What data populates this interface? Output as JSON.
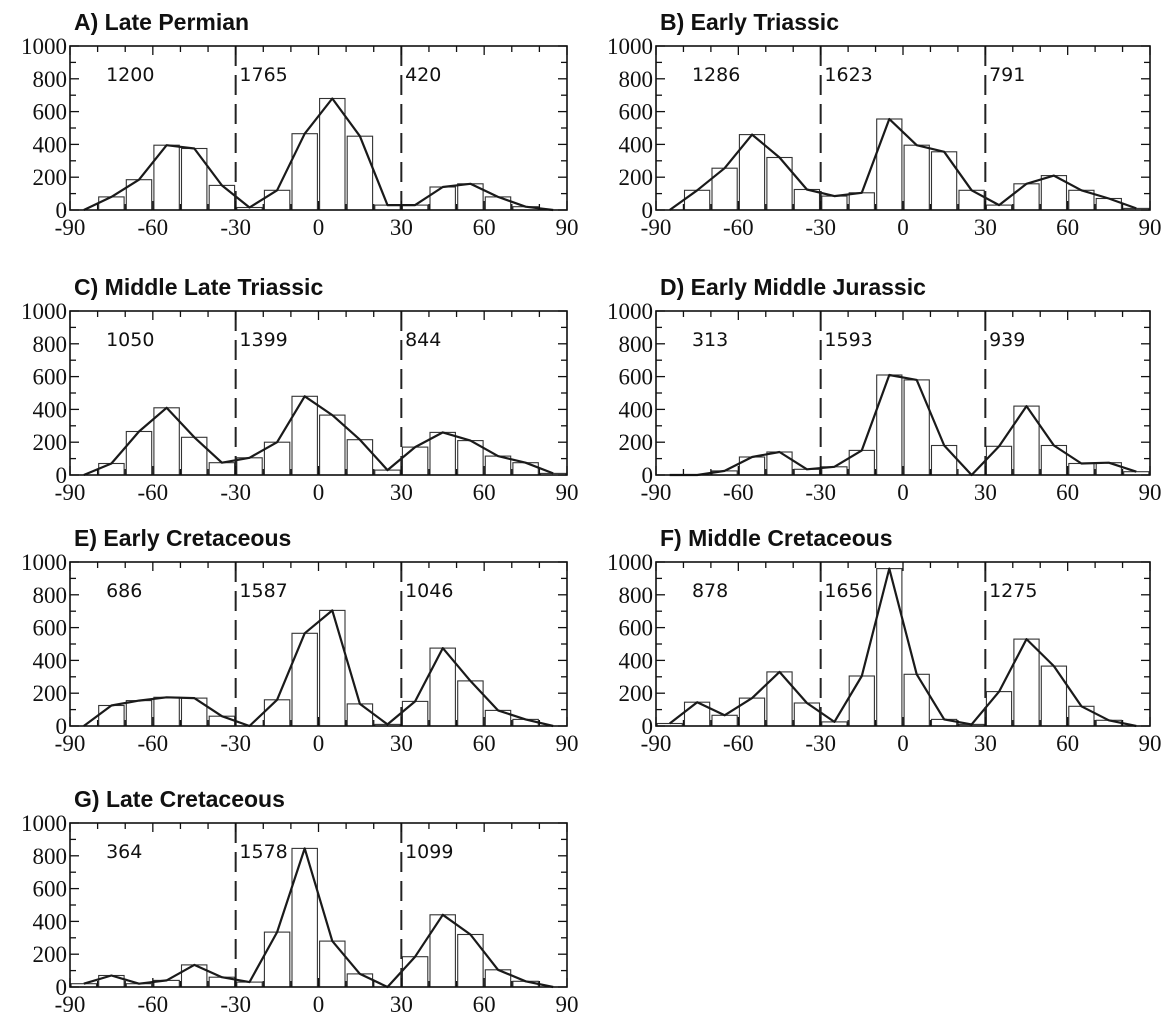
{
  "chart_data": [
    {
      "type": "bar",
      "title": "A) Late Permian",
      "xlim": [
        -90,
        90
      ],
      "ylim": [
        0,
        1000
      ],
      "xticks": [
        "-90",
        "-60",
        "-30",
        "0",
        "30",
        "60",
        "90"
      ],
      "yticks": [
        "0",
        "200",
        "400",
        "600",
        "800",
        "1000"
      ],
      "zone_boundaries": [
        -30,
        30
      ],
      "zone_counts": [
        "1200",
        "1765",
        "420"
      ],
      "bins": [
        -85,
        -75,
        -65,
        -55,
        -45,
        -35,
        -25,
        -15,
        -5,
        5,
        15,
        25,
        35,
        45,
        55,
        65,
        75,
        85
      ],
      "values": [
        0,
        80,
        185,
        395,
        375,
        150,
        15,
        120,
        465,
        680,
        450,
        30,
        30,
        140,
        160,
        80,
        20,
        0
      ],
      "line": [
        0,
        80,
        185,
        395,
        375,
        150,
        15,
        120,
        465,
        680,
        450,
        30,
        30,
        140,
        160,
        80,
        20,
        0
      ]
    },
    {
      "type": "bar",
      "title": "B) Early Triassic",
      "xlim": [
        -90,
        90
      ],
      "ylim": [
        0,
        1000
      ],
      "xticks": [
        "-90",
        "-60",
        "-30",
        "0",
        "30",
        "60",
        "90"
      ],
      "yticks": [
        "0",
        "200",
        "400",
        "600",
        "800",
        "1000"
      ],
      "zone_boundaries": [
        -30,
        30
      ],
      "zone_counts": [
        "1286",
        "1623",
        "791"
      ],
      "bins": [
        -85,
        -75,
        -65,
        -55,
        -45,
        -35,
        -25,
        -15,
        -5,
        5,
        15,
        25,
        35,
        45,
        55,
        65,
        75,
        85
      ],
      "values": [
        0,
        120,
        255,
        460,
        320,
        125,
        85,
        105,
        555,
        395,
        355,
        120,
        30,
        160,
        210,
        120,
        70,
        10
      ],
      "line": [
        0,
        120,
        255,
        460,
        320,
        125,
        85,
        105,
        555,
        395,
        355,
        120,
        30,
        160,
        210,
        120,
        70,
        10
      ]
    },
    {
      "type": "bar",
      "title": "C) Middle Late Triassic",
      "xlim": [
        -90,
        90
      ],
      "ylim": [
        0,
        1000
      ],
      "xticks": [
        "-90",
        "-60",
        "-30",
        "0",
        "30",
        "60",
        "90"
      ],
      "yticks": [
        "0",
        "200",
        "400",
        "600",
        "800",
        "1000"
      ],
      "zone_boundaries": [
        -30,
        30
      ],
      "zone_counts": [
        "1050",
        "1399",
        "844"
      ],
      "bins": [
        -85,
        -75,
        -65,
        -55,
        -45,
        -35,
        -25,
        -15,
        -5,
        5,
        15,
        25,
        35,
        45,
        55,
        65,
        75,
        85
      ],
      "values": [
        0,
        70,
        265,
        410,
        230,
        75,
        105,
        200,
        480,
        365,
        215,
        30,
        170,
        260,
        210,
        115,
        75,
        10
      ],
      "line": [
        0,
        70,
        265,
        410,
        230,
        75,
        105,
        200,
        480,
        365,
        215,
        30,
        170,
        260,
        210,
        115,
        75,
        10
      ]
    },
    {
      "type": "bar",
      "title": "D) Early Middle Jurassic",
      "xlim": [
        -90,
        90
      ],
      "ylim": [
        0,
        1000
      ],
      "xticks": [
        "-90",
        "-60",
        "-30",
        "0",
        "30",
        "60",
        "90"
      ],
      "yticks": [
        "0",
        "200",
        "400",
        "600",
        "800",
        "1000"
      ],
      "zone_boundaries": [
        -30,
        30
      ],
      "zone_counts": [
        "313",
        "1593",
        "939"
      ],
      "bins": [
        -85,
        -75,
        -65,
        -55,
        -45,
        -35,
        -25,
        -15,
        -5,
        5,
        15,
        25,
        35,
        45,
        55,
        65,
        75,
        85
      ],
      "values": [
        0,
        0,
        25,
        110,
        140,
        35,
        50,
        150,
        610,
        580,
        180,
        0,
        175,
        420,
        180,
        70,
        75,
        20
      ],
      "line": [
        0,
        0,
        25,
        110,
        140,
        35,
        50,
        150,
        610,
        580,
        180,
        0,
        175,
        420,
        180,
        70,
        75,
        20
      ]
    },
    {
      "type": "bar",
      "title": "E) Early Cretaceous",
      "xlim": [
        -90,
        90
      ],
      "ylim": [
        0,
        1000
      ],
      "xticks": [
        "-90",
        "-60",
        "-30",
        "0",
        "30",
        "60",
        "90"
      ],
      "yticks": [
        "0",
        "200",
        "400",
        "600",
        "800",
        "1000"
      ],
      "zone_boundaries": [
        -30,
        30
      ],
      "zone_counts": [
        "686",
        "1587",
        "1046"
      ],
      "bins": [
        -85,
        -75,
        -65,
        -55,
        -45,
        -35,
        -25,
        -15,
        -5,
        5,
        15,
        25,
        35,
        45,
        55,
        65,
        75,
        85
      ],
      "values": [
        0,
        125,
        155,
        175,
        170,
        60,
        0,
        160,
        565,
        705,
        135,
        10,
        150,
        475,
        275,
        95,
        40,
        0
      ],
      "line": [
        0,
        125,
        155,
        175,
        170,
        60,
        0,
        160,
        565,
        705,
        135,
        10,
        150,
        475,
        275,
        95,
        40,
        0
      ]
    },
    {
      "type": "bar",
      "title": "F) Middle Cretaceous",
      "xlim": [
        -90,
        90
      ],
      "ylim": [
        0,
        1000
      ],
      "xticks": [
        "-90",
        "-60",
        "-30",
        "0",
        "30",
        "60",
        "90"
      ],
      "yticks": [
        "0",
        "200",
        "400",
        "600",
        "800",
        "1000"
      ],
      "zone_boundaries": [
        -30,
        30
      ],
      "zone_counts": [
        "878",
        "1656",
        "1275"
      ],
      "bins": [
        -85,
        -75,
        -65,
        -55,
        -45,
        -35,
        -25,
        -15,
        -5,
        5,
        15,
        25,
        35,
        45,
        55,
        65,
        75,
        85
      ],
      "values": [
        15,
        145,
        65,
        170,
        330,
        140,
        25,
        305,
        960,
        315,
        40,
        10,
        210,
        530,
        365,
        120,
        35,
        0
      ],
      "line": [
        15,
        145,
        65,
        170,
        330,
        140,
        25,
        305,
        960,
        315,
        40,
        10,
        210,
        530,
        365,
        120,
        35,
        0
      ]
    },
    {
      "type": "bar",
      "title": "G) Late Cretaceous",
      "xlim": [
        -90,
        90
      ],
      "ylim": [
        0,
        1000
      ],
      "xticks": [
        "-90",
        "-60",
        "-30",
        "0",
        "30",
        "60",
        "90"
      ],
      "yticks": [
        "0",
        "200",
        "400",
        "600",
        "800",
        "1000"
      ],
      "zone_boundaries": [
        -30,
        30
      ],
      "zone_counts": [
        "364",
        "1578",
        "1099"
      ],
      "bins": [
        -85,
        -75,
        -65,
        -55,
        -45,
        -35,
        -25,
        -15,
        -5,
        5,
        15,
        25,
        35,
        45,
        55,
        65,
        75,
        85
      ],
      "values": [
        20,
        70,
        20,
        40,
        135,
        60,
        30,
        335,
        845,
        280,
        80,
        0,
        185,
        440,
        320,
        105,
        35,
        0
      ],
      "line": [
        20,
        70,
        20,
        40,
        135,
        60,
        30,
        335,
        845,
        280,
        80,
        0,
        185,
        440,
        320,
        105,
        35,
        0
      ]
    }
  ]
}
